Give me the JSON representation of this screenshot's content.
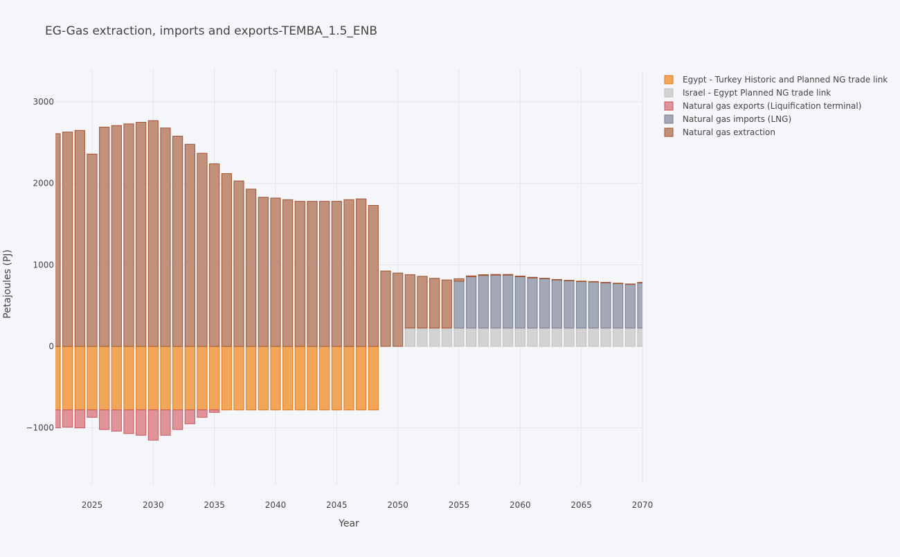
{
  "chart_data": {
    "type": "bar",
    "barmode": "relative",
    "title": "EG-Gas extraction, imports and exports-TEMBA_1.5_ENB",
    "xlabel": "Year",
    "ylabel": "Petajoules (PJ)",
    "xlim": [
      2022,
      2070
    ],
    "ylim": [
      -1700,
      3400
    ],
    "x_ticks": [
      2025,
      2030,
      2035,
      2040,
      2045,
      2050,
      2055,
      2060,
      2065,
      2070
    ],
    "y_ticks": [
      -1000,
      0,
      1000,
      2000,
      3000
    ],
    "y_tick_labels": [
      "−1000",
      "0",
      "1000",
      "2000",
      "3000"
    ],
    "grid": true,
    "legend_position": "top-right",
    "x": [
      2022,
      2023,
      2024,
      2025,
      2026,
      2027,
      2028,
      2029,
      2030,
      2031,
      2032,
      2033,
      2034,
      2035,
      2036,
      2037,
      2038,
      2039,
      2040,
      2041,
      2042,
      2043,
      2044,
      2045,
      2046,
      2047,
      2048,
      2049,
      2050,
      2051,
      2052,
      2053,
      2054,
      2055,
      2056,
      2057,
      2058,
      2059,
      2060,
      2061,
      2062,
      2063,
      2064,
      2065,
      2066,
      2067,
      2068,
      2069,
      2070
    ],
    "series": [
      {
        "name": "Egypt - Turkey Historic and Planned NG trade link",
        "color": "#f2a65a",
        "stroke": "#e07b1f",
        "values": [
          -780,
          -780,
          -780,
          -780,
          -780,
          -780,
          -780,
          -780,
          -780,
          -780,
          -780,
          -780,
          -780,
          -780,
          -780,
          -780,
          -780,
          -780,
          -780,
          -780,
          -780,
          -780,
          -780,
          -780,
          -780,
          -780,
          -780,
          0,
          0,
          0,
          0,
          0,
          0,
          0,
          0,
          0,
          0,
          0,
          0,
          0,
          0,
          0,
          0,
          0,
          0,
          0,
          0,
          0,
          0
        ]
      },
      {
        "name": "Israel - Egypt Planned NG trade link",
        "color": "#d3d3d3",
        "stroke": "#c0c0c0",
        "values": [
          0,
          0,
          0,
          0,
          0,
          0,
          0,
          0,
          0,
          0,
          0,
          0,
          0,
          0,
          0,
          0,
          0,
          0,
          0,
          0,
          0,
          0,
          0,
          0,
          0,
          0,
          0,
          0,
          0,
          225,
          225,
          225,
          225,
          225,
          225,
          225,
          225,
          225,
          225,
          225,
          225,
          225,
          225,
          225,
          225,
          225,
          225,
          225,
          225
        ]
      },
      {
        "name": "Natural gas exports (Liquification terminal)",
        "color": "#e0949a",
        "stroke": "#c9565e",
        "values": [
          -220,
          -210,
          -220,
          -90,
          -240,
          -260,
          -290,
          -310,
          -370,
          -310,
          -240,
          -170,
          -90,
          -30,
          0,
          0,
          0,
          0,
          0,
          0,
          0,
          0,
          0,
          0,
          0,
          0,
          0,
          0,
          0,
          0,
          0,
          0,
          0,
          0,
          0,
          0,
          0,
          0,
          0,
          0,
          0,
          0,
          0,
          0,
          0,
          0,
          0,
          0,
          0
        ]
      },
      {
        "name": "Natural gas imports (LNG)",
        "color": "#a3a9b6",
        "stroke": "#737a89",
        "values": [
          0,
          0,
          0,
          0,
          0,
          0,
          0,
          0,
          0,
          0,
          0,
          0,
          0,
          0,
          0,
          0,
          0,
          0,
          0,
          0,
          0,
          0,
          0,
          0,
          0,
          0,
          0,
          0,
          0,
          0,
          0,
          0,
          0,
          575,
          630,
          645,
          650,
          650,
          630,
          615,
          605,
          590,
          580,
          570,
          565,
          555,
          545,
          535,
          555
        ]
      },
      {
        "name": "Natural gas extraction",
        "color": "#c2917b",
        "stroke": "#a0522d",
        "values": [
          2610,
          2630,
          2650,
          2360,
          2690,
          2710,
          2730,
          2750,
          2770,
          2680,
          2580,
          2480,
          2370,
          2240,
          2120,
          2030,
          1930,
          1830,
          1820,
          1800,
          1780,
          1780,
          1780,
          1780,
          1800,
          1810,
          1730,
          925,
          900,
          655,
          635,
          610,
          590,
          30,
          10,
          10,
          8,
          8,
          8,
          8,
          6,
          6,
          6,
          6,
          6,
          6,
          6,
          6,
          6
        ]
      }
    ]
  }
}
